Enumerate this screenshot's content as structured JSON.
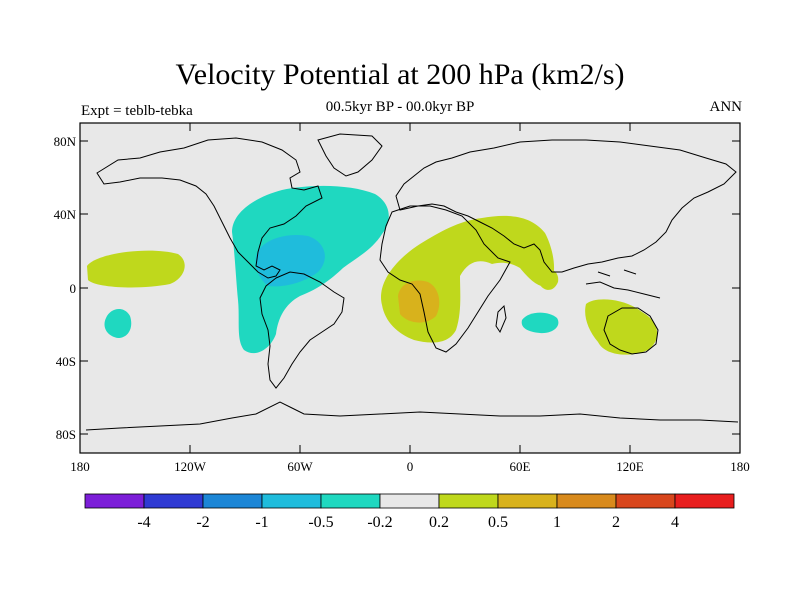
{
  "title": "Velocity Potential at 200 hPa (km2/s)",
  "subtitle": "00.5kyr BP - 00.0kyr BP",
  "experiment_label": "Expt = teblb-tebka",
  "season_label": "ANN",
  "axes": {
    "lat_ticks": [
      "80N",
      "40N",
      "0",
      "40S",
      "80S"
    ],
    "lon_ticks": [
      "180",
      "120W",
      "60W",
      "0",
      "60E",
      "120E",
      "180"
    ]
  },
  "colorbar": {
    "colors": [
      "#7c1ed8",
      "#2f3ad3",
      "#1c86d6",
      "#1fbcdc",
      "#1fd8c0",
      "#e8e8e8",
      "#bfd81c",
      "#d8b21c",
      "#d88a1c",
      "#d8461c",
      "#e81e1e"
    ],
    "labels": [
      "-4",
      "-2",
      "-1",
      "-0.5",
      "-0.2",
      "0.2",
      "0.5",
      "1",
      "2",
      "4"
    ]
  },
  "colors": {
    "ocean": "#e8e8e8",
    "negative_light": "#1fd8c0",
    "negative_mid": "#1fbcdc",
    "positive_light": "#bfd81c",
    "positive_mid": "#d8b21c"
  }
}
